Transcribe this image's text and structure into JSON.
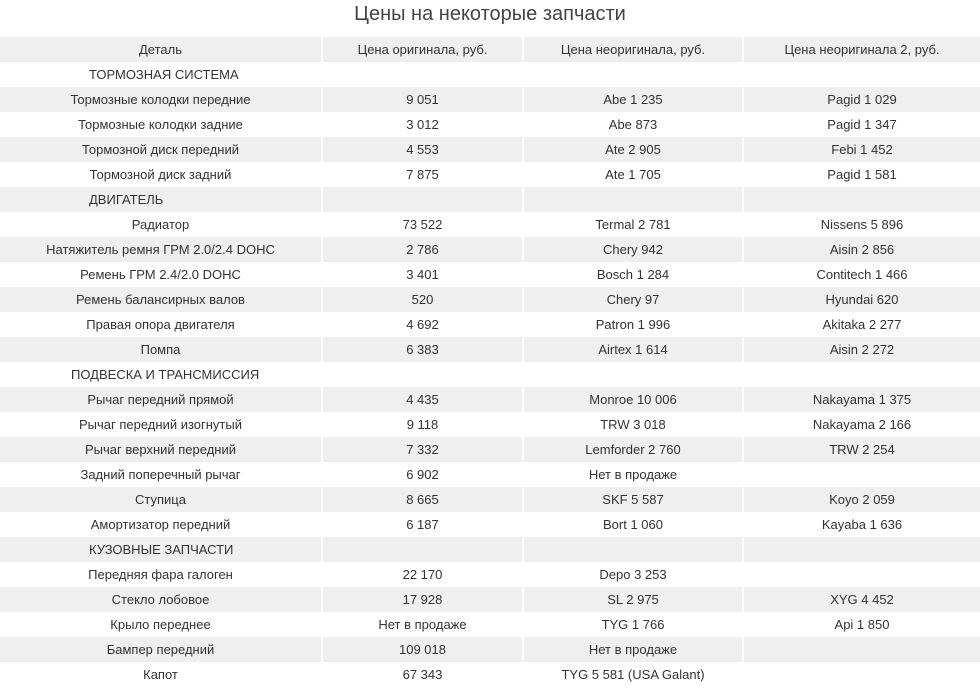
{
  "title": "Цены на некоторые запчасти",
  "headers": [
    "Деталь",
    "Цена оригинала, руб.",
    "Цена неоригинала, руб.",
    "Цена неоригинала 2, руб."
  ],
  "rows": [
    {
      "type": "section",
      "cells": [
        "ТОРМОЗНАЯ СИСТЕМА",
        "",
        "",
        ""
      ]
    },
    {
      "type": "item",
      "cells": [
        "Тормозные колодки передние",
        "9 051",
        "Abe  1 235",
        "Pagid 1 029"
      ]
    },
    {
      "type": "item",
      "cells": [
        "Тормозные колодки задние",
        "3 012",
        "Abe 873",
        "Pagid 1 347"
      ]
    },
    {
      "type": "item",
      "cells": [
        "Тормозной диск передний",
        "4 553",
        "Ate 2 905",
        "Febi 1 452"
      ]
    },
    {
      "type": "item",
      "cells": [
        "Тормозной диск задний",
        "7 875",
        "Ate 1 705",
        "Pagid 1 581"
      ]
    },
    {
      "type": "section",
      "cells": [
        "ДВИГАТЕЛЬ",
        "",
        "",
        ""
      ]
    },
    {
      "type": "item",
      "cells": [
        "Радиатор",
        "73 522",
        "Termal 2 781",
        "Nissens 5 896"
      ]
    },
    {
      "type": "item",
      "cells": [
        "Натяжитель ремня ГРМ 2.0/2.4 DOHC",
        "2 786",
        "Chery 942",
        "Aisin 2 856"
      ]
    },
    {
      "type": "item",
      "cells": [
        "Ремень ГРМ 2.4/2.0  DOHC",
        "3 401",
        "Bosch 1 284",
        "Contitech 1 466"
      ]
    },
    {
      "type": "item",
      "cells": [
        "Ремень балансирных валов",
        "520",
        "Chery 97",
        "Hyundai 620"
      ]
    },
    {
      "type": "item",
      "cells": [
        "Правая опора двигателя",
        "4 692",
        "Patron 1 996",
        "Akitaka 2 277"
      ]
    },
    {
      "type": "item",
      "cells": [
        "Помпа",
        "6 383",
        "Airtex 1 614",
        "Aisin 2 272"
      ]
    },
    {
      "type": "section",
      "cells": [
        "ПОДВЕСКА И ТРАНСМИССИЯ",
        "",
        "",
        ""
      ]
    },
    {
      "type": "item",
      "cells": [
        "Рычаг передний прямой",
        "4 435",
        "Monroe 10 006",
        "Nakayama 1 375"
      ]
    },
    {
      "type": "item",
      "cells": [
        "Рычаг передний изогнутый",
        "9 118",
        "TRW 3 018",
        "Nakayama 2 166"
      ]
    },
    {
      "type": "item",
      "cells": [
        "Рычаг верхний передний",
        "7 332",
        "Lemforder 2 760",
        "TRW 2 254"
      ]
    },
    {
      "type": "item",
      "cells": [
        "Задний поперечный рычаг",
        "6 902",
        "Нет в продаже",
        ""
      ]
    },
    {
      "type": "item",
      "cells": [
        "Ступица",
        "8 665",
        "SKF 5 587",
        "Koyo 2 059"
      ]
    },
    {
      "type": "item",
      "cells": [
        "Амортизатор передний",
        "6 187",
        "Bort 1 060",
        "Kayaba 1 636"
      ]
    },
    {
      "type": "section",
      "cells": [
        "КУЗОВНЫЕ ЗАПЧАСТИ",
        "",
        "",
        ""
      ]
    },
    {
      "type": "item",
      "cells": [
        "Передняя фара галоген",
        "22 170",
        "Depo 3 253",
        ""
      ]
    },
    {
      "type": "item",
      "cells": [
        "Стекло лобовое",
        "17 928",
        "SL 2 975",
        "XYG 4 452"
      ]
    },
    {
      "type": "item",
      "cells": [
        "Крыло переднее",
        "Нет в продаже",
        "TYG 1 766",
        "Api 1 850"
      ]
    },
    {
      "type": "item",
      "cells": [
        "Бампер передний",
        "109 018",
        "Нет в продаже",
        ""
      ]
    },
    {
      "type": "item",
      "cells": [
        "Капот",
        "67 343",
        "TYG 5 581 (USA Galant)",
        ""
      ]
    }
  ]
}
